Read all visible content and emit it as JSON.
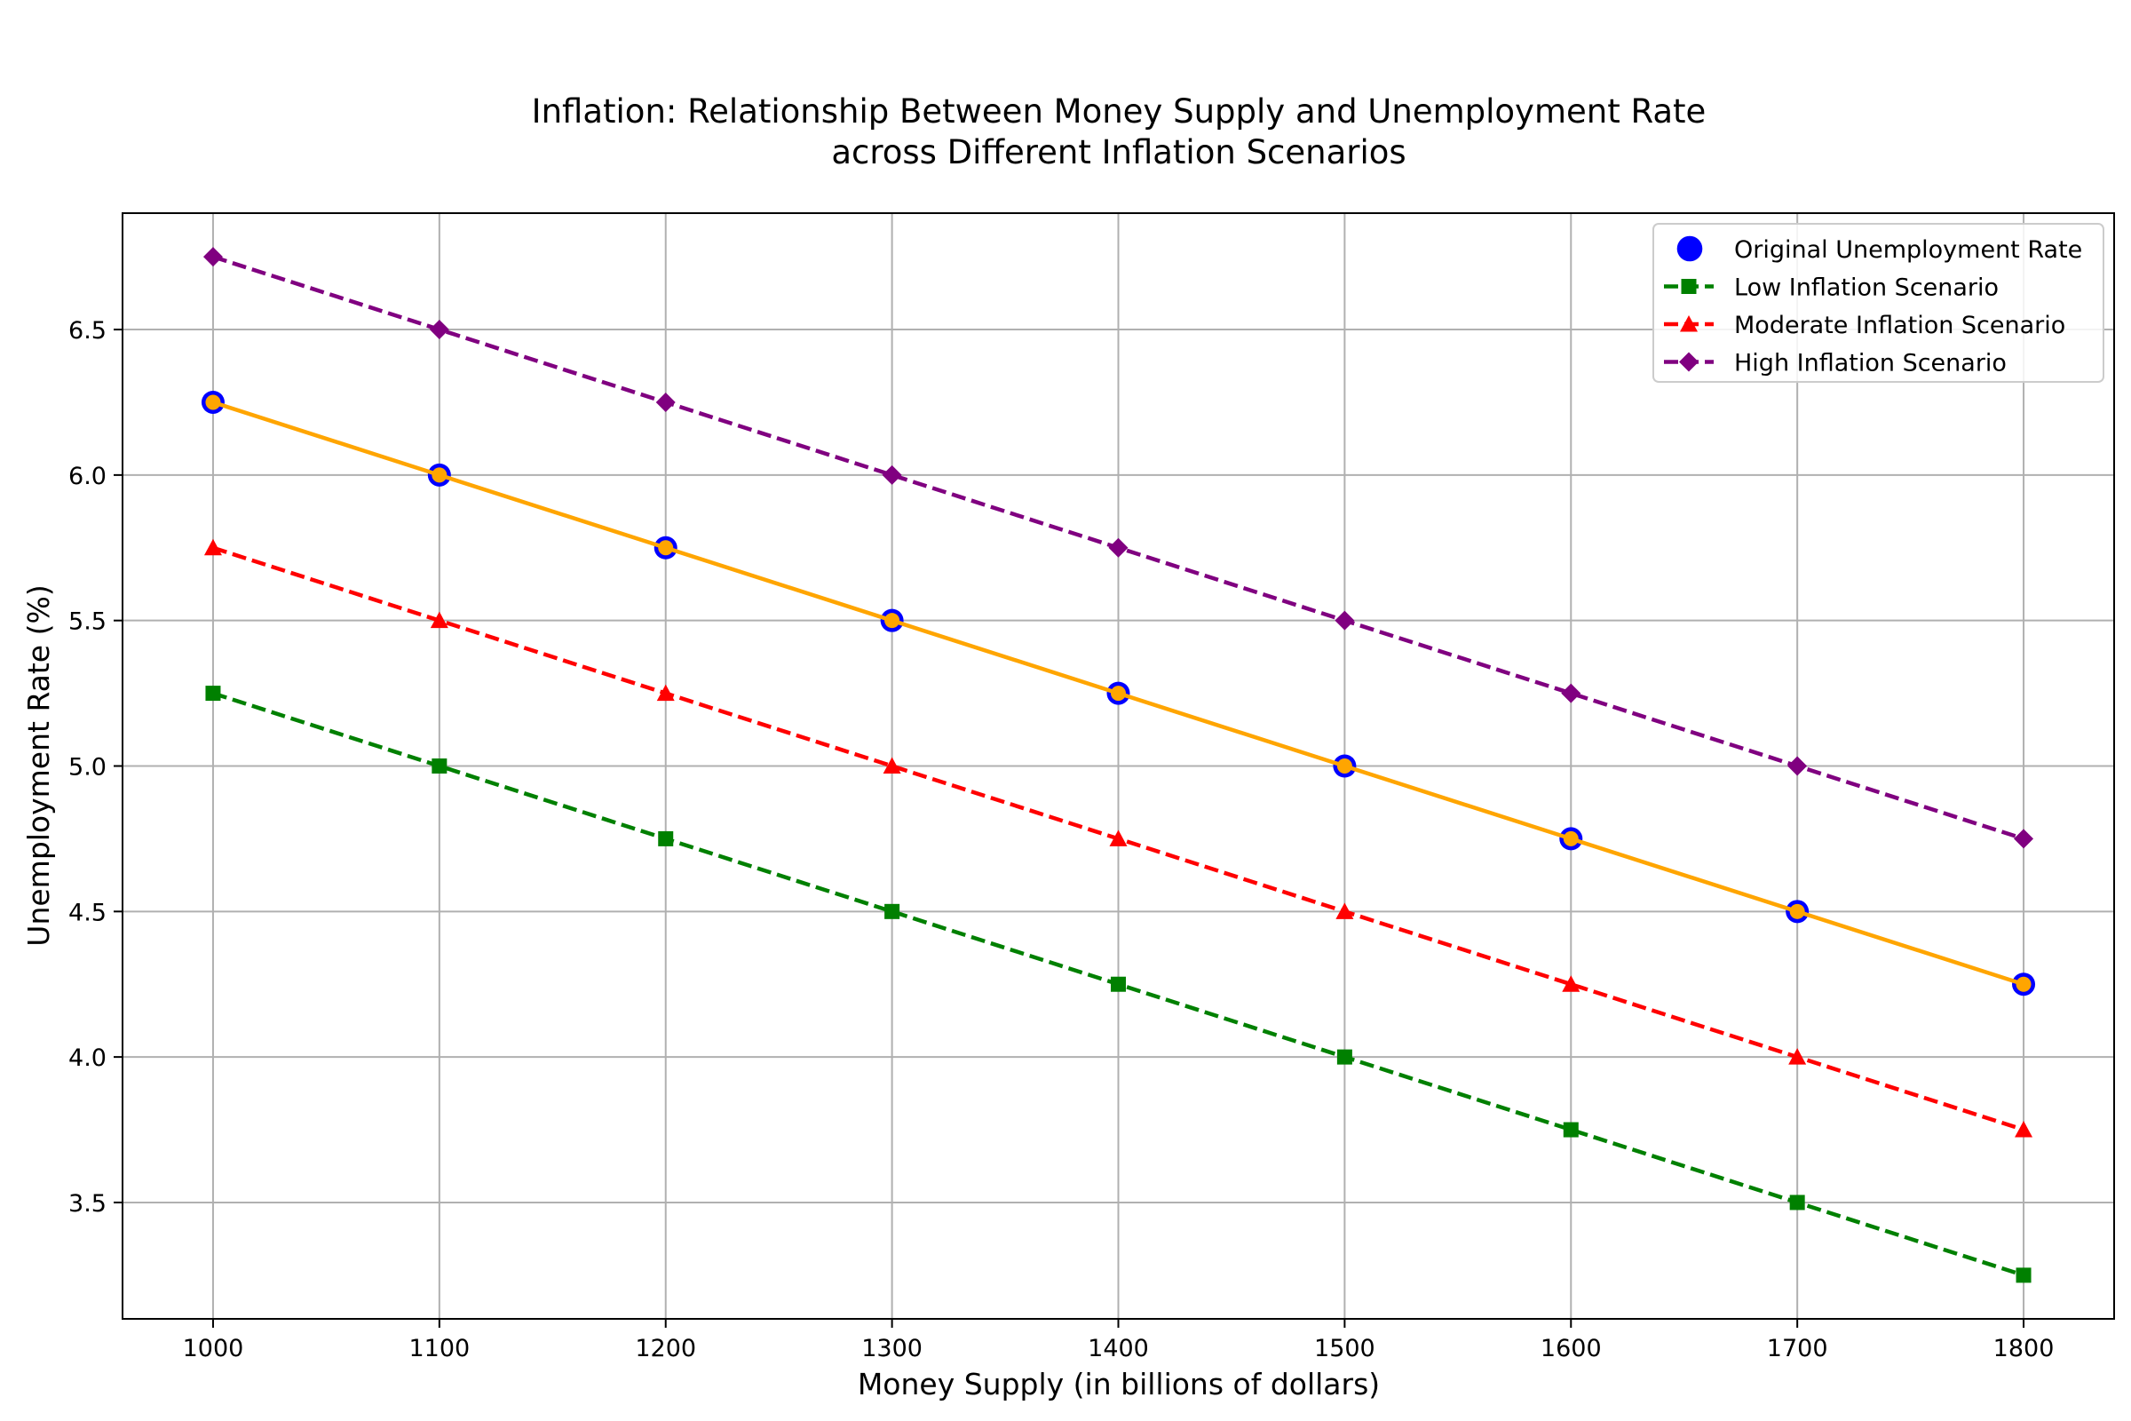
{
  "chart_data": {
    "type": "line",
    "title_line1": "Inflation: Relationship Between Money Supply and Unemployment Rate",
    "title_line2": "across Different Inflation Scenarios",
    "xlabel": "Money Supply (in billions of dollars)",
    "ylabel": "Unemployment Rate (%)",
    "x": [
      1000,
      1100,
      1200,
      1300,
      1400,
      1500,
      1600,
      1700,
      1800
    ],
    "xlim": [
      960,
      1840
    ],
    "ylim": [
      3.1,
      6.9
    ],
    "xticks": [
      "1000",
      "1100",
      "1200",
      "1300",
      "1400",
      "1500",
      "1600",
      "1700",
      "1800"
    ],
    "yticks": [
      "3.5",
      "4.0",
      "4.5",
      "5.0",
      "5.5",
      "6.0",
      "6.5"
    ],
    "grid": true,
    "legend_position": "top-right",
    "series": [
      {
        "name": "Original Unemployment Rate",
        "values": [
          6.25,
          6.0,
          5.75,
          5.5,
          5.25,
          5.0,
          4.75,
          4.5,
          4.25
        ],
        "color": "#0000ff",
        "line_color": "#ffa500",
        "marker": "circle",
        "line_style": "solid"
      },
      {
        "name": "Low Inflation Scenario",
        "values": [
          5.25,
          5.0,
          4.75,
          4.5,
          4.25,
          4.0,
          3.75,
          3.5,
          3.25
        ],
        "color": "#008000",
        "marker": "square",
        "line_style": "dashed"
      },
      {
        "name": "Moderate Inflation Scenario",
        "values": [
          5.75,
          5.5,
          5.25,
          5.0,
          4.75,
          4.5,
          4.25,
          4.0,
          3.75
        ],
        "color": "#ff0000",
        "marker": "triangle",
        "line_style": "dashed"
      },
      {
        "name": "High Inflation Scenario",
        "values": [
          6.75,
          6.5,
          6.25,
          6.0,
          5.75,
          5.5,
          5.25,
          5.0,
          4.75
        ],
        "color": "#800080",
        "marker": "diamond",
        "line_style": "dashed"
      }
    ]
  }
}
